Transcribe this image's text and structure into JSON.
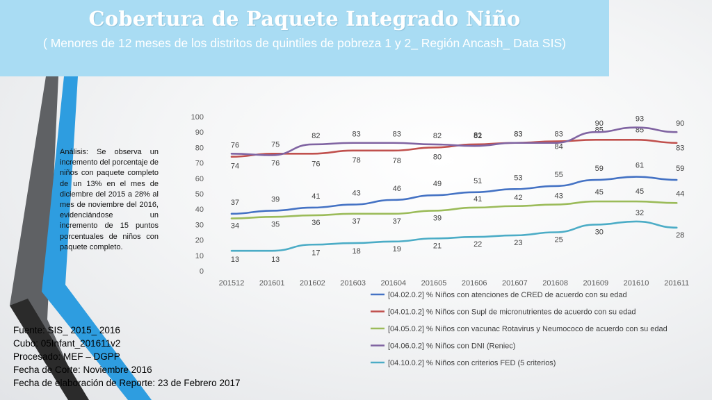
{
  "header": {
    "title": "Cobertura de Paquete Integrado Niño",
    "subtitle": "( Menores de 12 meses de los distritos de quintiles de pobreza 1 y 2_ Región Ancash_ Data SIS)"
  },
  "analysis": {
    "text": "Análisis: Se observa un incremento del porcentaje de niños con paquete completo de un 13% en el mes de diciembre del 2015 a 28% al mes de noviembre del 2016, evidenciándose un incremento de 15 puntos porcentuales de niños con paquete completo."
  },
  "footer": {
    "source": "Fuente: SIS_ 2015_ 2016",
    "cube": "Cubo: 05Infant_201611v2",
    "processed": "Procesado: MEF – DGPP",
    "cutoff": "Fecha de Corte: Noviembre 2016",
    "report_date": "Fecha de elaboración de Reporte: 23 de Febrero 2017"
  },
  "chart_data": {
    "type": "line",
    "categories": [
      "201512",
      "201601",
      "201602",
      "201603",
      "201604",
      "201605",
      "201606",
      "201607",
      "201608",
      "201609",
      "201610",
      "201611"
    ],
    "ylim": [
      0,
      100
    ],
    "yticks": [
      0,
      10,
      20,
      30,
      40,
      50,
      60,
      70,
      80,
      90,
      100
    ],
    "grid": false,
    "legend_position": "bottom",
    "series": [
      {
        "name": "[04.02.0.2] % Niños  con atenciones de CRED de acuerdo con su edad",
        "color": "#4472c4",
        "values": [
          37,
          39,
          41,
          43,
          46,
          49,
          51,
          53,
          55,
          59,
          61,
          59
        ]
      },
      {
        "name": "[04.01.0.2] % Niños con Supl de micronutrientes de acuerdo con su edad",
        "color": "#c0504d",
        "values": [
          74,
          76,
          76,
          78,
          78,
          80,
          82,
          83,
          84,
          85,
          85,
          83
        ]
      },
      {
        "name": "[04.05.0.2] % Niños con vacunac Rotavirus y Neumococo de acuerdo con su edad",
        "color": "#9bbb59",
        "values": [
          34,
          35,
          36,
          37,
          37,
          39,
          41,
          42,
          43,
          45,
          45,
          44
        ]
      },
      {
        "name": "[04.06.0.2] % Niños con DNI (Reniec)",
        "color": "#8064a2",
        "values": [
          76,
          75,
          82,
          83,
          83,
          82,
          81,
          83,
          83,
          90,
          93,
          90
        ]
      },
      {
        "name": "[04.10.0.2] % Niños con criterios FED (5 criterios)",
        "color": "#4bacc6",
        "values": [
          13,
          13,
          17,
          18,
          19,
          21,
          22,
          23,
          25,
          30,
          32,
          28
        ]
      }
    ]
  }
}
